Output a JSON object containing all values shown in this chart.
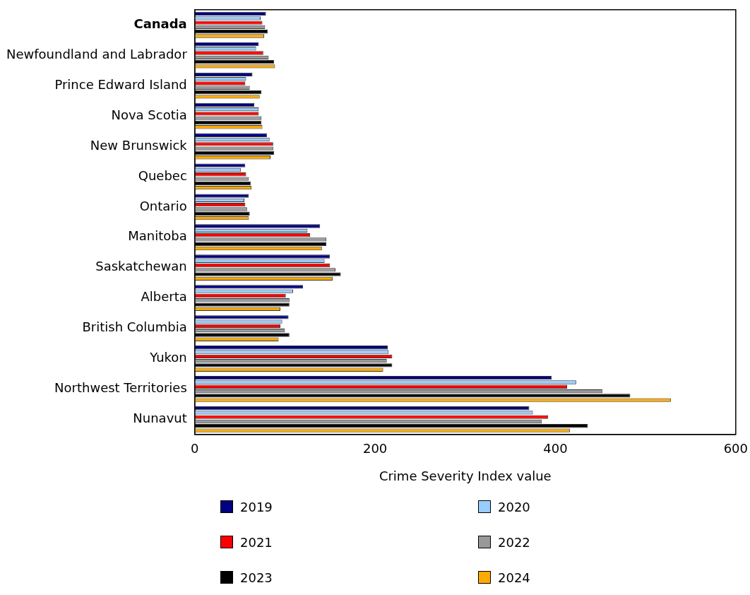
{
  "chart_data": {
    "type": "bar",
    "orientation": "horizontal",
    "xlabel": "Crime Severity Index value",
    "categories": [
      "Canada",
      "Newfoundland and Labrador",
      "Prince Edward Island",
      "Nova Scotia",
      "New Brunswick",
      "Quebec",
      "Ontario",
      "Manitoba",
      "Saskatchewan",
      "Alberta",
      "British Columbia",
      "Yukon",
      "Northwest Territories",
      "Nunavut"
    ],
    "series": [
      {
        "name": "2019",
        "color": "#000080",
        "values": [
          79,
          71,
          64,
          66,
          80,
          56,
          60,
          139,
          150,
          120,
          104,
          214,
          396,
          371
        ]
      },
      {
        "name": "2020",
        "color": "#99ccff",
        "values": [
          73,
          68,
          57,
          71,
          83,
          51,
          55,
          125,
          144,
          109,
          97,
          215,
          423,
          375
        ]
      },
      {
        "name": "2021",
        "color": "#ff0000",
        "values": [
          75,
          76,
          56,
          71,
          87,
          57,
          56,
          128,
          150,
          101,
          95,
          219,
          413,
          392
        ]
      },
      {
        "name": "2022",
        "color": "#999999",
        "values": [
          78,
          82,
          61,
          74,
          87,
          60,
          58,
          146,
          156,
          105,
          100,
          213,
          452,
          385
        ]
      },
      {
        "name": "2023",
        "color": "#000000",
        "values": [
          81,
          88,
          74,
          74,
          88,
          62,
          61,
          146,
          162,
          105,
          105,
          219,
          483,
          436
        ]
      },
      {
        "name": "2024",
        "color": "#ffaa00",
        "values": [
          77,
          89,
          72,
          75,
          84,
          63,
          60,
          141,
          153,
          95,
          93,
          209,
          528,
          416
        ]
      }
    ],
    "xlim": [
      0,
      600
    ],
    "xticks": [
      0,
      200,
      400,
      600
    ],
    "grid": false,
    "legend": "bottom"
  }
}
